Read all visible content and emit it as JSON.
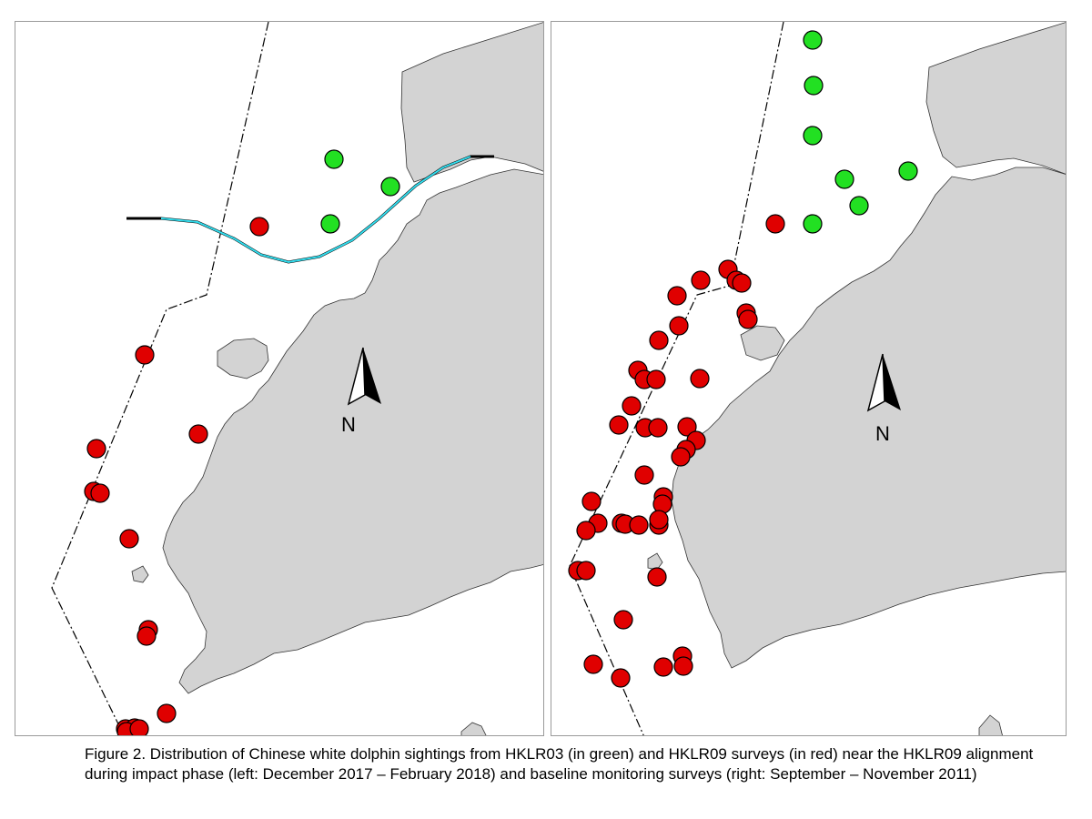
{
  "figure": {
    "caption": "Figure 2.  Distribution of Chinese white dolphin sightings from HKLR03 (in green) and HKLR09 surveys (in red) near the HKLR09 alignment during impact phase (left: December 2017 – February 2018) and baseline monitoring surveys (right: September – November 2011)"
  },
  "north_arrow": {
    "label": "N"
  },
  "legend_colors": {
    "HKLR03": "#22e022",
    "HKLR09": "#e00000",
    "land": "#d3d3d3",
    "alignment": "#33ddee"
  },
  "maps": [
    {
      "id": "left",
      "period": "December 2017 – February 2018",
      "green_sightings": 3,
      "red_sightings": 14
    },
    {
      "id": "right",
      "period": "September – November 2011",
      "green_sightings": 7,
      "red_sightings": 47
    }
  ]
}
